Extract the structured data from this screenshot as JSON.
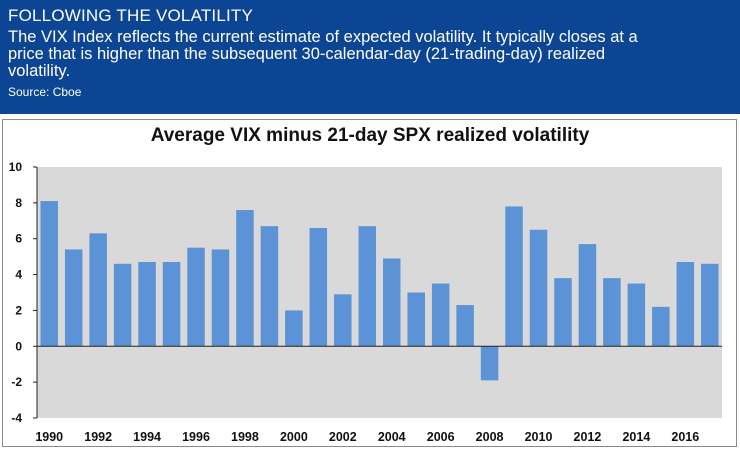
{
  "header": {
    "title": "FOLLOWING THE VOLATILITY",
    "description": "The VIX Index reflects the current estimate of expected volatility. It typically closes at a price that is higher than the subsequent 30-calendar-day (21-trading-day) realized volatility.",
    "source": "Source: Cboe"
  },
  "colors": {
    "header_bg": "#0d4595",
    "bar": "#5b93d6",
    "plot_bg": "#d9d9d9"
  },
  "chart_data": {
    "type": "bar",
    "title": "Average VIX minus 21-day SPX realized volatility",
    "xlabel": "",
    "ylabel": "",
    "ylim": [
      -4,
      10
    ],
    "yticks": [
      -4,
      -2,
      0,
      2,
      4,
      6,
      8,
      10
    ],
    "grid": false,
    "categories": [
      "1990",
      "1991",
      "1992",
      "1993",
      "1994",
      "1995",
      "1996",
      "1997",
      "1998",
      "1999",
      "2000",
      "2001",
      "2002",
      "2003",
      "2004",
      "2005",
      "2006",
      "2007",
      "2008",
      "2009",
      "2010",
      "2011",
      "2012",
      "2013",
      "2014",
      "2015",
      "2016",
      "2017"
    ],
    "xtick_labels": [
      "1990",
      "",
      "1992",
      "",
      "1994",
      "",
      "1996",
      "",
      "1998",
      "",
      "2000",
      "",
      "2002",
      "",
      "2004",
      "",
      "2006",
      "",
      "2008",
      "",
      "2010",
      "",
      "2012",
      "",
      "2014",
      "",
      "2016",
      ""
    ],
    "values": [
      8.1,
      5.4,
      6.3,
      4.6,
      4.7,
      4.7,
      5.5,
      5.4,
      7.6,
      6.7,
      2.0,
      6.6,
      2.9,
      6.7,
      4.9,
      3.0,
      3.5,
      2.3,
      -1.9,
      7.8,
      6.5,
      3.8,
      5.7,
      3.8,
      3.5,
      2.2,
      4.7,
      4.6
    ]
  }
}
